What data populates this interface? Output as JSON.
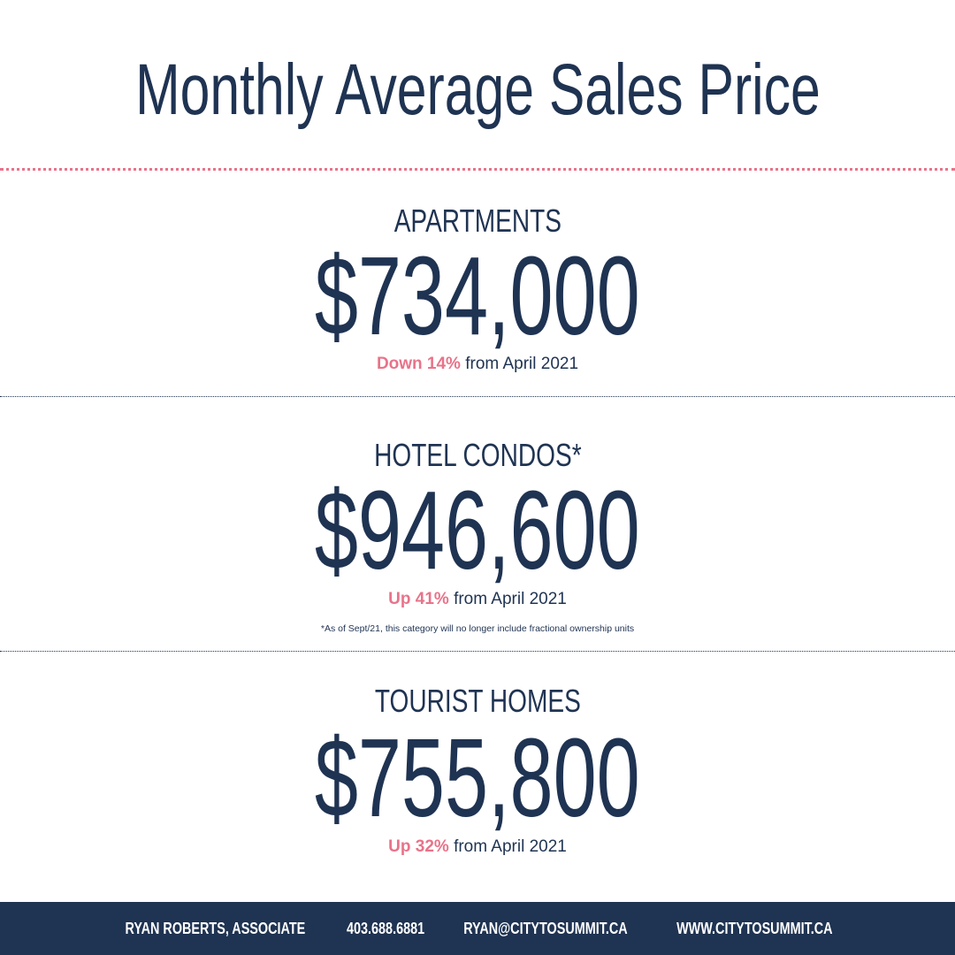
{
  "title": "Monthly Average Sales Price",
  "sections": [
    {
      "label": "APARTMENTS",
      "price": "$734,000",
      "change": "Down 14%",
      "comparison": "from April 2021"
    },
    {
      "label": "HOTEL CONDOS*",
      "price": "$946,600",
      "change": "Up 41%",
      "comparison": "from April 2021",
      "note": "*As of Sept/21, this category will no longer include fractional ownership units"
    },
    {
      "label": "TOURIST HOMES",
      "price": "$755,800",
      "change": "Up 32%",
      "comparison": "from April 2021"
    }
  ],
  "footer": [
    "RYAN ROBERTS, ASSOCIATE",
    "403.688.6881",
    "RYAN@CITYTOSUMMIT.CA",
    "WWW.CITYTOSUMMIT.CA"
  ]
}
